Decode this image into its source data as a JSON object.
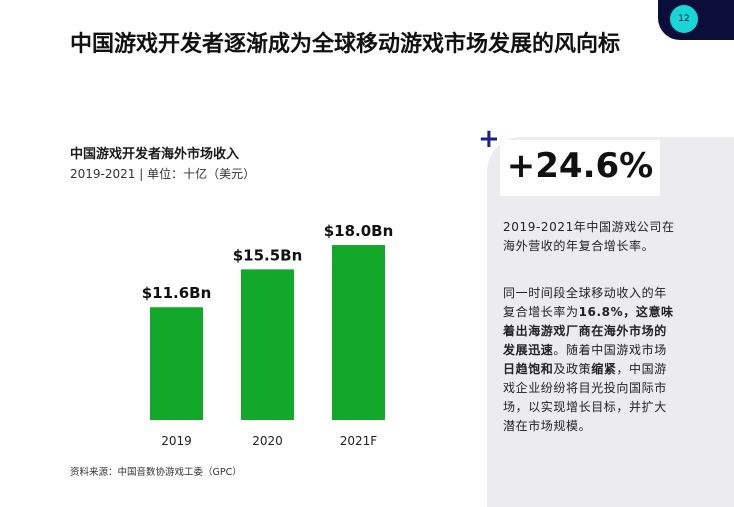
{
  "page_number": "12",
  "headline": "中国游戏开发者逐渐成为全球移动游戏市场发展的风向标",
  "chart_data": {
    "type": "bar",
    "title": "中国游戏开发者海外市场收入",
    "subtitle": "2019-2021 | 单位：十亿（美元）",
    "categories": [
      "2019",
      "2020",
      "2021F"
    ],
    "values": [
      11.6,
      15.5,
      18.0
    ],
    "value_labels": [
      "$11.6Bn",
      "$15.5Bn",
      "$18.0Bn"
    ],
    "color": "#12a829"
  },
  "source": "资料来源：中国音数协游戏工委（GPC）",
  "sidebar": {
    "stat": "+24.6%",
    "stat_note": "2019-2021年中国游戏公司在海外营收的年复合增长率。",
    "body": [
      {
        "text": "同一时间段全球移动收入的年复合增长率为",
        "bold": false
      },
      {
        "text": "16.8%，这意味着出海游戏厂商在海外市场的发展迅速",
        "bold": true
      },
      {
        "text": "。随着中国游戏市场",
        "bold": false
      },
      {
        "text": "日趋饱和",
        "bold": true
      },
      {
        "text": "及政策",
        "bold": false
      },
      {
        "text": "缩紧",
        "bold": true
      },
      {
        "text": "，中国游戏企业纷纷将目光投向国际市场，以实现增长目标，并扩大潜在市场规模。",
        "bold": false
      }
    ]
  }
}
